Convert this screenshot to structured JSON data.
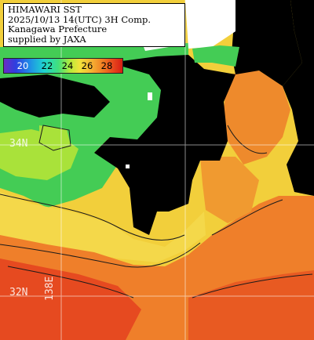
{
  "title": {
    "line1": "HIMAWARI SST",
    "line2": "2025/10/13 14(UTC) 3H Comp.",
    "line3": "Kanagawa Prefecture",
    "line4": "supplied by JAXA"
  },
  "legend": {
    "ticks": [
      "20",
      "22",
      "24",
      "26",
      "28"
    ]
  },
  "grid_labels": {
    "lat_34": "34N",
    "lat_32": "32N",
    "lon_138": "138E"
  },
  "colors": {
    "land": "#000000",
    "cloud": "#ffffff",
    "cold": "#3cc85a",
    "mild": "#b4e63c",
    "warm": "#f5e13a",
    "hot": "#f08228",
    "hottest": "#e63c1e",
    "grid": "#ffffff"
  }
}
